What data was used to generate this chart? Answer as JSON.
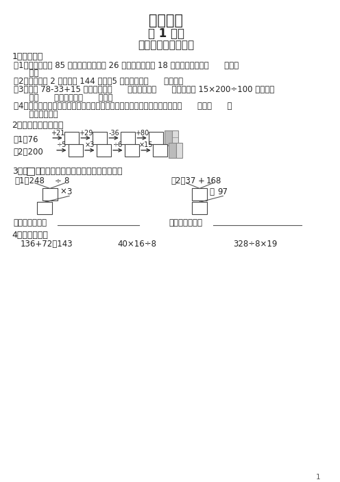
{
  "title": "四则运算",
  "subtitle": "第 1 课时",
  "sub_subtitle": "加减、乘除混合运算",
  "background_color": "#ffffff",
  "text_color": "#222222",
  "page_number": "1",
  "section1_header": "1、填一填。",
  "s1_items": [
    "（1）食品超市有 85 箱饮料，上午卖出 26 箱，下午又运来 18 箱，超市现在有（      ）箱饮",
    "      料。",
    "（2）一辆轿车 2 小时行驶 144 千米，5 小时能行驶（      ）千米。",
    "（3）计算 78-33+15 时，要先算（      ）法，再算（      ）法，计算 15×200÷100 时，要先",
    "      算（      ）法，再算（      ）法。",
    "（4）在没有括号的算式里，如果只有加、减法或者只有乘、除法，都要按从（      ）往（      ）",
    "      的顺序计算。"
  ],
  "section2_header": "2、比一比，谁最快。",
  "row1_start": "（1）76",
  "row1_ops": [
    "+21",
    "+29",
    "-36",
    "+80"
  ],
  "row2_start": "（2）200",
  "row2_ops": [
    "÷5",
    "×3",
    "÷6",
    "×15"
  ],
  "section3_header": "3、在",
  "section3_header2": "里填上适当的数，然后列出综合算式。",
  "tree1_nums": [
    "（1）248",
    "÷",
    "8"
  ],
  "tree1_op2": [
    "×",
    "3"
  ],
  "tree2_nums": [
    "（2）37",
    "+",
    "168"
  ],
  "tree2_op2": [
    "－",
    "97"
  ],
  "zonghe_label": "列出综合算式：",
  "section4_header": "4、脱式计算。",
  "calc_items": [
    "136+72－143",
    "40×16÷8",
    "328÷8×19"
  ]
}
